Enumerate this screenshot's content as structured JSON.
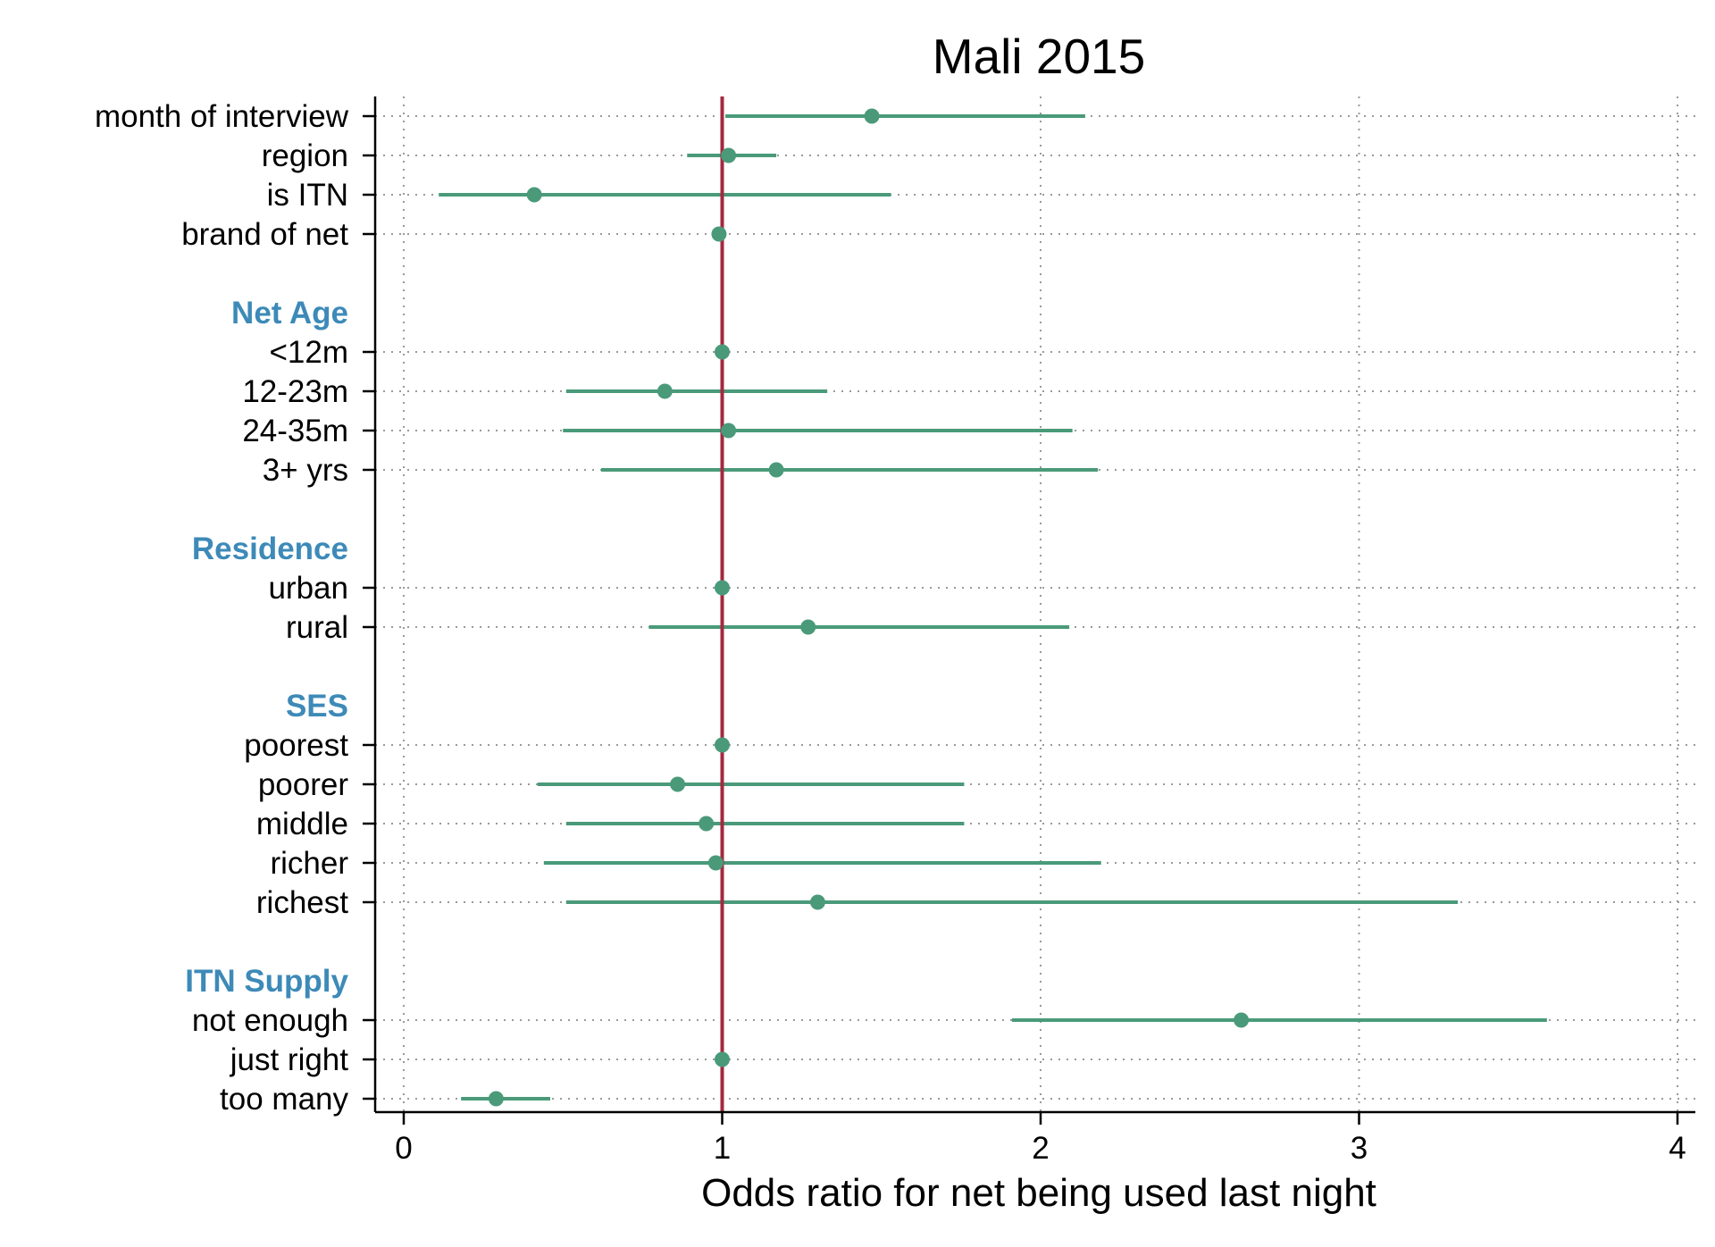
{
  "chart_data": {
    "type": "scatter",
    "subtype": "forest-plot",
    "title": "Mali 2015",
    "xlabel": "Odds ratio for net being used last night",
    "xlim": [
      0,
      4
    ],
    "xticks": [
      "0",
      "1",
      "2",
      "3",
      "4"
    ],
    "reference_line": 1,
    "grid": "dotted",
    "colors": {
      "point": "#4a9a7a",
      "ci": "#4a9a7a",
      "reference": "#a3293f",
      "group_label": "#3d8ab8",
      "grid": "#9a9a9a"
    },
    "rows": [
      {
        "label": "month of interview",
        "group": false,
        "or": 1.47,
        "lo": 1.01,
        "hi": 2.14
      },
      {
        "label": "region",
        "group": false,
        "or": 1.02,
        "lo": 0.89,
        "hi": 1.17
      },
      {
        "label": "is ITN",
        "group": false,
        "or": 0.41,
        "lo": 0.11,
        "hi": 1.53
      },
      {
        "label": "brand of net",
        "group": false,
        "or": 0.99,
        "lo": null,
        "hi": null
      },
      {
        "label": "",
        "group": false,
        "spacer": true
      },
      {
        "label": "Net Age",
        "group": true
      },
      {
        "label": "<12m",
        "group": false,
        "or": 1.0,
        "lo": null,
        "hi": null
      },
      {
        "label": "12-23m",
        "group": false,
        "or": 0.82,
        "lo": 0.51,
        "hi": 1.33
      },
      {
        "label": "24-35m",
        "group": false,
        "or": 1.02,
        "lo": 0.5,
        "hi": 2.1
      },
      {
        "label": "3+ yrs",
        "group": false,
        "or": 1.17,
        "lo": 0.62,
        "hi": 2.18
      },
      {
        "label": "",
        "group": false,
        "spacer": true
      },
      {
        "label": "Residence",
        "group": true
      },
      {
        "label": "urban",
        "group": false,
        "or": 1.0,
        "lo": null,
        "hi": null
      },
      {
        "label": "rural",
        "group": false,
        "or": 1.27,
        "lo": 0.77,
        "hi": 2.09
      },
      {
        "label": "",
        "group": false,
        "spacer": true
      },
      {
        "label": "SES",
        "group": true
      },
      {
        "label": "poorest",
        "group": false,
        "or": 1.0,
        "lo": null,
        "hi": null
      },
      {
        "label": "poorer",
        "group": false,
        "or": 0.86,
        "lo": 0.42,
        "hi": 1.76
      },
      {
        "label": "middle",
        "group": false,
        "or": 0.95,
        "lo": 0.51,
        "hi": 1.76
      },
      {
        "label": "richer",
        "group": false,
        "or": 0.98,
        "lo": 0.44,
        "hi": 2.19
      },
      {
        "label": "richest",
        "group": false,
        "or": 1.3,
        "lo": 0.51,
        "hi": 3.31
      },
      {
        "label": "",
        "group": false,
        "spacer": true
      },
      {
        "label": "ITN Supply",
        "group": true
      },
      {
        "label": "not enough",
        "group": false,
        "or": 2.63,
        "lo": 1.91,
        "hi": 3.59
      },
      {
        "label": "just right",
        "group": false,
        "or": 1.0,
        "lo": null,
        "hi": null
      },
      {
        "label": "too many",
        "group": false,
        "or": 0.29,
        "lo": 0.18,
        "hi": 0.46
      }
    ]
  }
}
